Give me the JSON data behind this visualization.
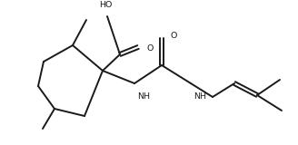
{
  "bg_color": "#ffffff",
  "line_color": "#1a1a1a",
  "line_width": 1.4,
  "figsize": [
    3.28,
    1.6
  ],
  "dpi": 100,
  "xlim": [
    0,
    328
  ],
  "ylim": [
    0,
    160
  ]
}
